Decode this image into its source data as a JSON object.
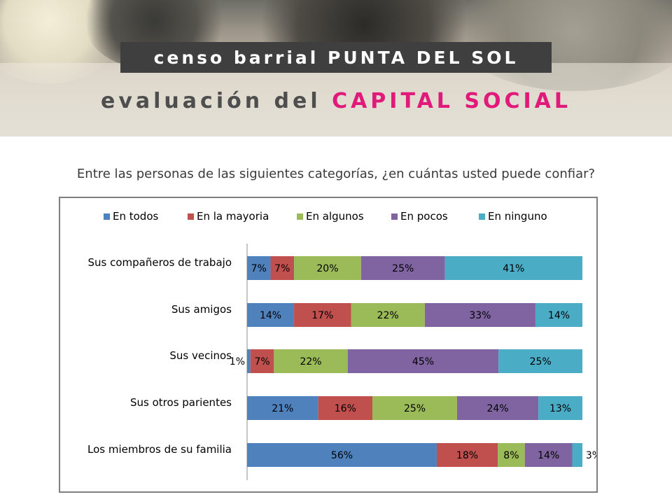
{
  "header": {
    "title": "censo barrial PUNTA DEL SOL",
    "subtitle_main": "evaluación del ",
    "subtitle_accent": "CAPITAL SOCIAL",
    "accent_color": "#e0197a"
  },
  "question": "Entre las personas de las siguientes categorías, ¿en cuántas usted puede confiar?",
  "chart_data": {
    "type": "bar",
    "orientation": "horizontal",
    "stacked": "percent",
    "legend_position": "top",
    "categories": [
      "Sus compañeros de trabajo",
      "Sus amigos",
      "Sus vecinos",
      "Sus otros parientes",
      "Los miembros de su familia"
    ],
    "series": [
      {
        "name": "En todos",
        "color": "#4f81bd",
        "values": [
          7,
          14,
          1,
          21,
          56
        ],
        "labels": [
          "7%",
          "14%",
          "1%",
          "21%",
          "56%"
        ]
      },
      {
        "name": "En la mayoria",
        "color": "#c0504d",
        "values": [
          7,
          17,
          7,
          16,
          18
        ],
        "labels": [
          "7%",
          "17%",
          "7%",
          "16%",
          "18%"
        ]
      },
      {
        "name": "En algunos",
        "color": "#9bbb59",
        "values": [
          20,
          22,
          22,
          25,
          8
        ],
        "labels": [
          "20%",
          "22%",
          "22%",
          "25%",
          "8%"
        ]
      },
      {
        "name": "En pocos",
        "color": "#8064a2",
        "values": [
          25,
          33,
          45,
          24,
          14
        ],
        "labels": [
          "25%",
          "33%",
          "45%",
          "24%",
          "14%"
        ]
      },
      {
        "name": "En ninguno",
        "color": "#4bacc6",
        "values": [
          41,
          14,
          25,
          13,
          3
        ],
        "labels": [
          "41%",
          "14%",
          "25%",
          "13%",
          "3%"
        ]
      }
    ]
  }
}
